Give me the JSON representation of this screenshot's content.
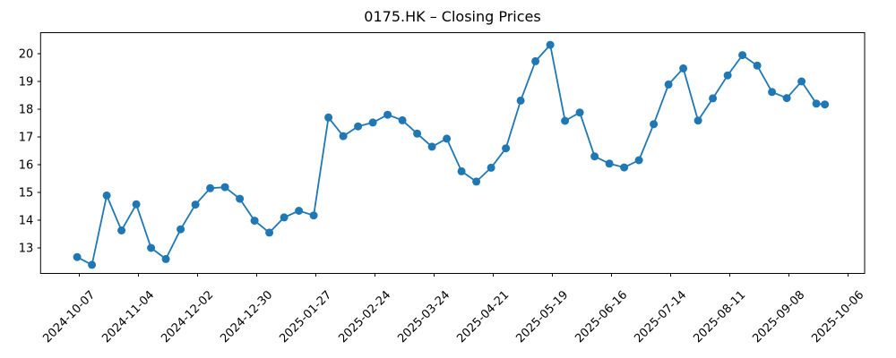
{
  "figure": {
    "background": "#ffffff"
  },
  "chart_data": {
    "type": "line",
    "title": "0175.HK – Closing Prices",
    "xlabel": "",
    "ylabel": "",
    "grid": false,
    "legend": "none",
    "line_color": "#1f77b4",
    "marker": "circle",
    "axis_color": "#000000",
    "ylim": [
      12.08,
      20.76
    ],
    "xlim": [
      "2024-09-18",
      "2025-10-14"
    ],
    "y_ticks": [
      13,
      14,
      15,
      16,
      17,
      18,
      19,
      20
    ],
    "x_ticks": [
      "2024-10-07",
      "2024-11-04",
      "2024-12-02",
      "2024-12-30",
      "2025-01-27",
      "2025-02-24",
      "2025-03-24",
      "2025-04-21",
      "2025-05-19",
      "2025-06-16",
      "2025-07-14",
      "2025-08-11",
      "2025-09-08",
      "2025-10-06"
    ],
    "x": [
      "2024-10-06",
      "2024-10-13",
      "2024-10-20",
      "2024-10-27",
      "2024-11-03",
      "2024-11-10",
      "2024-11-17",
      "2024-11-24",
      "2024-12-01",
      "2024-12-08",
      "2024-12-15",
      "2024-12-22",
      "2024-12-29",
      "2025-01-05",
      "2025-01-12",
      "2025-01-19",
      "2025-01-26",
      "2025-02-02",
      "2025-02-09",
      "2025-02-16",
      "2025-02-23",
      "2025-03-02",
      "2025-03-09",
      "2025-03-16",
      "2025-03-23",
      "2025-03-30",
      "2025-04-06",
      "2025-04-13",
      "2025-04-20",
      "2025-04-27",
      "2025-05-04",
      "2025-05-11",
      "2025-05-18",
      "2025-05-25",
      "2025-06-01",
      "2025-06-08",
      "2025-06-15",
      "2025-06-22",
      "2025-06-29",
      "2025-07-06",
      "2025-07-13",
      "2025-07-20",
      "2025-07-27",
      "2025-08-03",
      "2025-08-10",
      "2025-08-17",
      "2025-08-24",
      "2025-08-31",
      "2025-09-07",
      "2025-09-14",
      "2025-09-21",
      "2025-09-25"
    ],
    "values": [
      12.67,
      12.39,
      14.89,
      13.63,
      14.57,
      13.0,
      12.6,
      13.67,
      14.56,
      15.15,
      15.19,
      14.77,
      13.98,
      13.55,
      14.1,
      14.34,
      14.17,
      17.7,
      17.03,
      17.38,
      17.52,
      17.8,
      17.6,
      17.12,
      16.65,
      16.94,
      15.76,
      15.39,
      15.89,
      16.59,
      18.31,
      19.73,
      20.32,
      17.58,
      17.88,
      16.3,
      16.04,
      15.9,
      16.16,
      17.46,
      18.89,
      19.47,
      17.59,
      18.39,
      19.22,
      19.95,
      19.57,
      18.62,
      18.4,
      19.0,
      18.2,
      18.17
    ]
  }
}
